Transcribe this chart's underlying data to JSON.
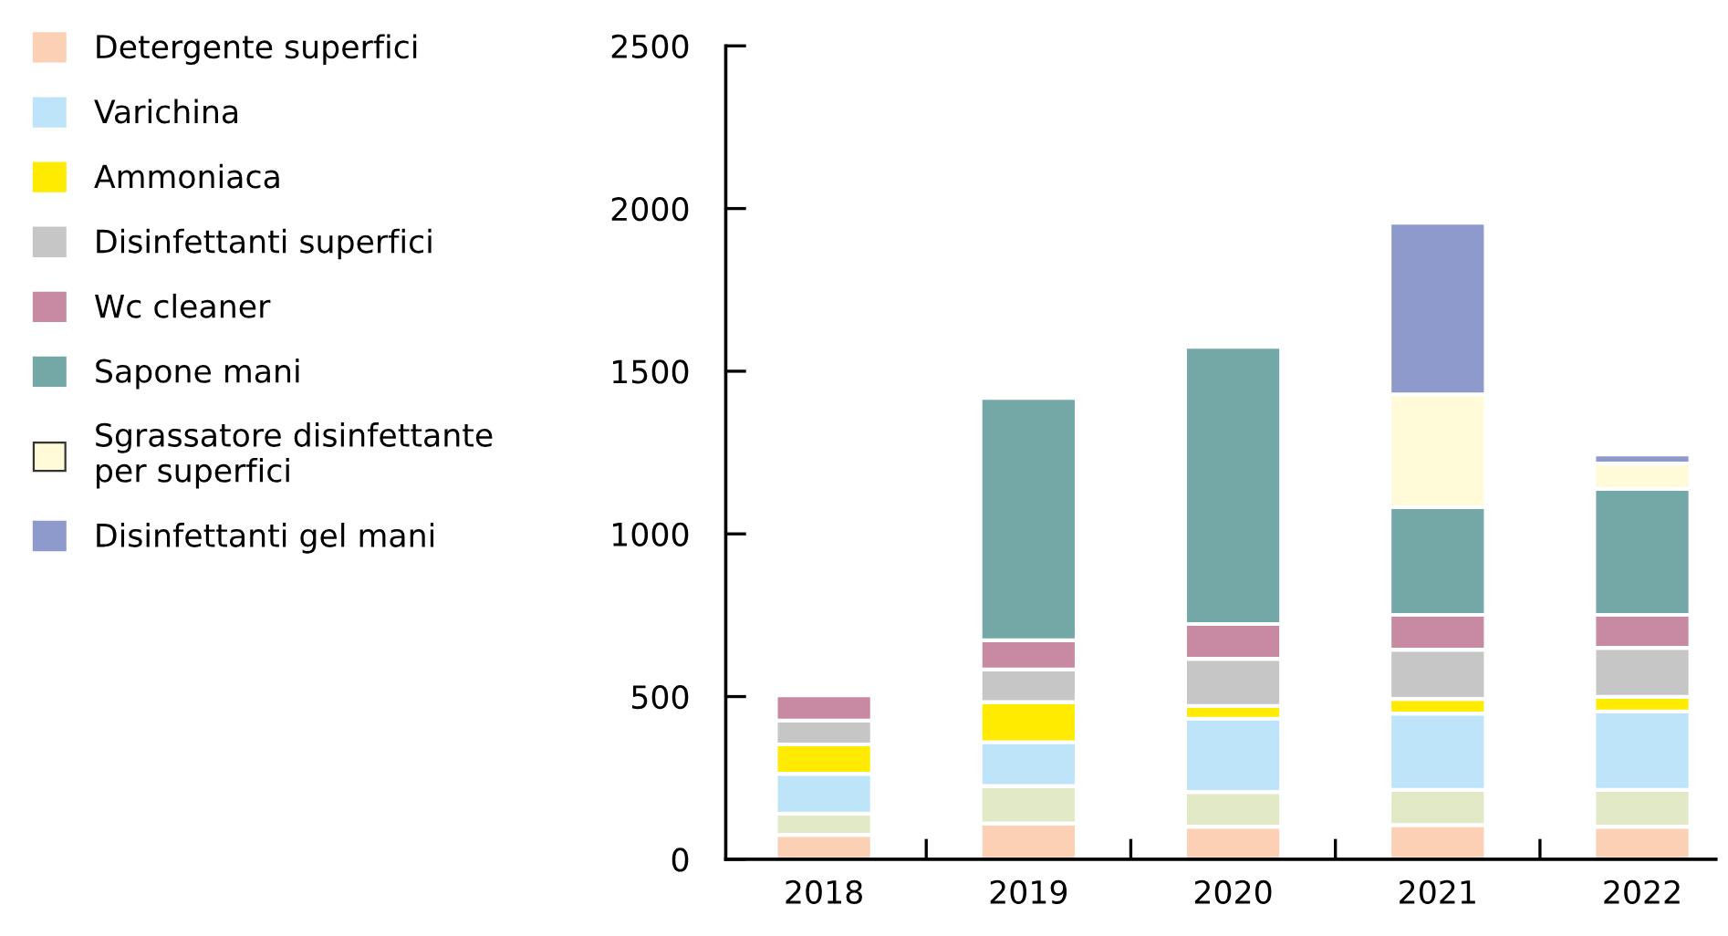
{
  "chart_data": {
    "type": "bar",
    "stacked": true,
    "categories": [
      "2018",
      "2019",
      "2020",
      "2021",
      "2022"
    ],
    "series": [
      {
        "name": "Detergente superfici",
        "color": "#fbd0b5",
        "values": [
          75,
          110,
          100,
          105,
          100
        ]
      },
      {
        "color": "#e2e9c6",
        "values": [
          65,
          115,
          107,
          108,
          113
        ]
      },
      {
        "name": "Varichina",
        "color": "#bee4f9",
        "values": [
          123,
          135,
          225,
          235,
          241
        ]
      },
      {
        "name": "Ammoniaca",
        "color": "#ffeb00",
        "values": [
          90,
          123,
          39,
          45,
          45
        ]
      },
      {
        "name": "Disinfettanti superfici",
        "color": "#c6c6c6",
        "values": [
          73,
          100,
          145,
          151,
          151
        ]
      },
      {
        "name": "Wc cleaner",
        "color": "#c88aa2",
        "values": [
          78,
          90,
          107,
          107,
          101
        ]
      },
      {
        "name": "Sapone mani",
        "color": "#74a8a7",
        "values": [
          0,
          745,
          852,
          331,
          387
        ]
      },
      {
        "name": "Sgrassatore disinfettante\nper superfici",
        "color": "#fffad8",
        "values": [
          0,
          0,
          0,
          347,
          78
        ]
      },
      {
        "name": "Disinfettanti gel mani",
        "color": "#8f9acc",
        "values": [
          0,
          0,
          0,
          527,
          28
        ]
      }
    ],
    "ylim": [
      0,
      2500
    ],
    "yticks": [
      0,
      500,
      1000,
      1500,
      2000,
      2500
    ],
    "grid": false,
    "legend": "left"
  }
}
